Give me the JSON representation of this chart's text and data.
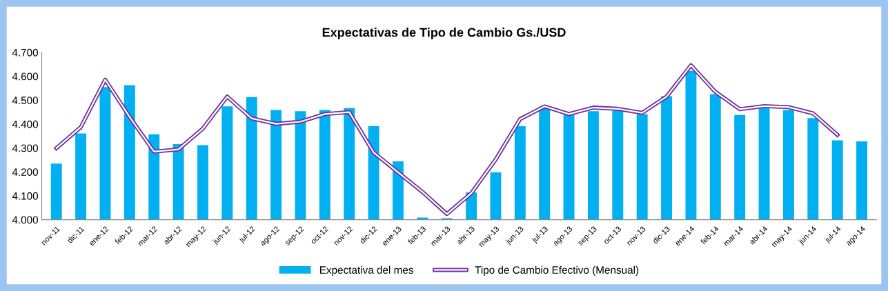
{
  "chart_data": {
    "type": "bar",
    "title": "Expectativas de Tipo de Cambio Gs./USD",
    "categories": [
      "nov-11",
      "dic-11",
      "ene-12",
      "feb-12",
      "mar-12",
      "abr-12",
      "may-12",
      "jun-12",
      "jul-12",
      "ago-12",
      "sep-12",
      "oct-12",
      "nov-12",
      "dic-12",
      "ene-13",
      "feb-13",
      "mar-13",
      "abr-13",
      "may-13",
      "jun-13",
      "jul-13",
      "ago-13",
      "sep-13",
      "oct-13",
      "nov-13",
      "dic-13",
      "ene-14",
      "feb-14",
      "mar-14",
      "abr-14",
      "may-14",
      "jun-14",
      "jul-14",
      "ago-14"
    ],
    "series": [
      {
        "name": "Expectativa del mes",
        "color": "#00b0f0",
        "values": [
          4.235,
          4.361,
          4.555,
          4.563,
          4.357,
          4.316,
          4.312,
          4.474,
          4.513,
          4.459,
          4.454,
          4.459,
          4.467,
          4.391,
          4.244,
          4.009,
          4.006,
          4.114,
          4.198,
          4.391,
          4.474,
          4.442,
          4.454,
          4.457,
          4.442,
          4.517,
          4.623,
          4.525,
          4.438,
          4.467,
          4.459,
          4.425,
          4.332,
          4.328
        ]
      },
      {
        "name": "Tipo de Cambio Efectivo (Mensual)",
        "type": "line",
        "color": "#7030a0",
        "values": [
          4.299,
          4.387,
          4.586,
          4.43,
          4.285,
          4.294,
          4.381,
          4.515,
          4.424,
          4.401,
          4.41,
          4.442,
          4.45,
          4.281,
          4.198,
          4.116,
          4.024,
          4.111,
          4.252,
          4.421,
          4.474,
          4.442,
          4.469,
          4.464,
          4.447,
          4.515,
          4.646,
          4.535,
          4.462,
          4.475,
          4.471,
          4.445,
          4.355,
          null
        ]
      }
    ],
    "ylim": [
      4.0,
      4.7
    ],
    "yticks": [
      {
        "value": 4.0,
        "label": "4.000"
      },
      {
        "value": 4.1,
        "label": "4.100"
      },
      {
        "value": 4.2,
        "label": "4.200"
      },
      {
        "value": 4.3,
        "label": "4.300"
      },
      {
        "value": 4.4,
        "label": "4.400"
      },
      {
        "value": 4.5,
        "label": "4.500"
      },
      {
        "value": 4.6,
        "label": "4.600"
      },
      {
        "value": 4.7,
        "label": "4.700"
      }
    ],
    "legend": "bottom",
    "grid": false,
    "marker": "none",
    "line_style": "solid"
  }
}
